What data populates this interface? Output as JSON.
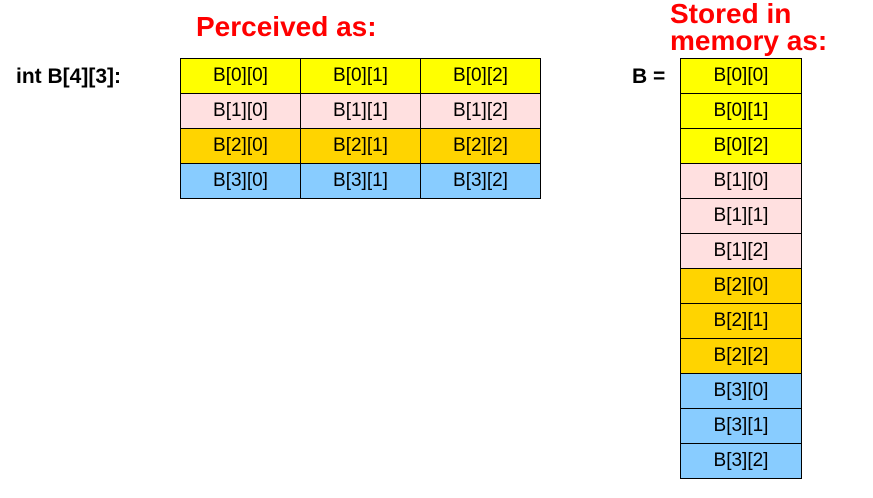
{
  "headings": {
    "perceived": "Perceived as:",
    "stored_line1": "Stored in",
    "stored_line2": "memory as:"
  },
  "declaration": "int B[4][3]:",
  "memory_label": "B =",
  "row_colors": [
    "#ffff00",
    "#ffe0e0",
    "#ffd400",
    "#88ccff"
  ],
  "heading_color": "#ff0000",
  "perceived_grid": [
    [
      "B[0][0]",
      "B[0][1]",
      "B[0][2]"
    ],
    [
      "B[1][0]",
      "B[1][1]",
      "B[1][2]"
    ],
    [
      "B[2][0]",
      "B[2][1]",
      "B[2][2]"
    ],
    [
      "B[3][0]",
      "B[3][1]",
      "B[3][2]"
    ]
  ],
  "memory_layout": [
    {
      "label": "B[0][0]",
      "row": 0
    },
    {
      "label": "B[0][1]",
      "row": 0
    },
    {
      "label": "B[0][2]",
      "row": 0
    },
    {
      "label": "B[1][0]",
      "row": 1
    },
    {
      "label": "B[1][1]",
      "row": 1
    },
    {
      "label": "B[1][2]",
      "row": 1
    },
    {
      "label": "B[2][0]",
      "row": 2
    },
    {
      "label": "B[2][1]",
      "row": 2
    },
    {
      "label": "B[2][2]",
      "row": 2
    },
    {
      "label": "B[3][0]",
      "row": 3
    },
    {
      "label": "B[3][1]",
      "row": 3
    },
    {
      "label": "B[3][2]",
      "row": 3
    }
  ]
}
